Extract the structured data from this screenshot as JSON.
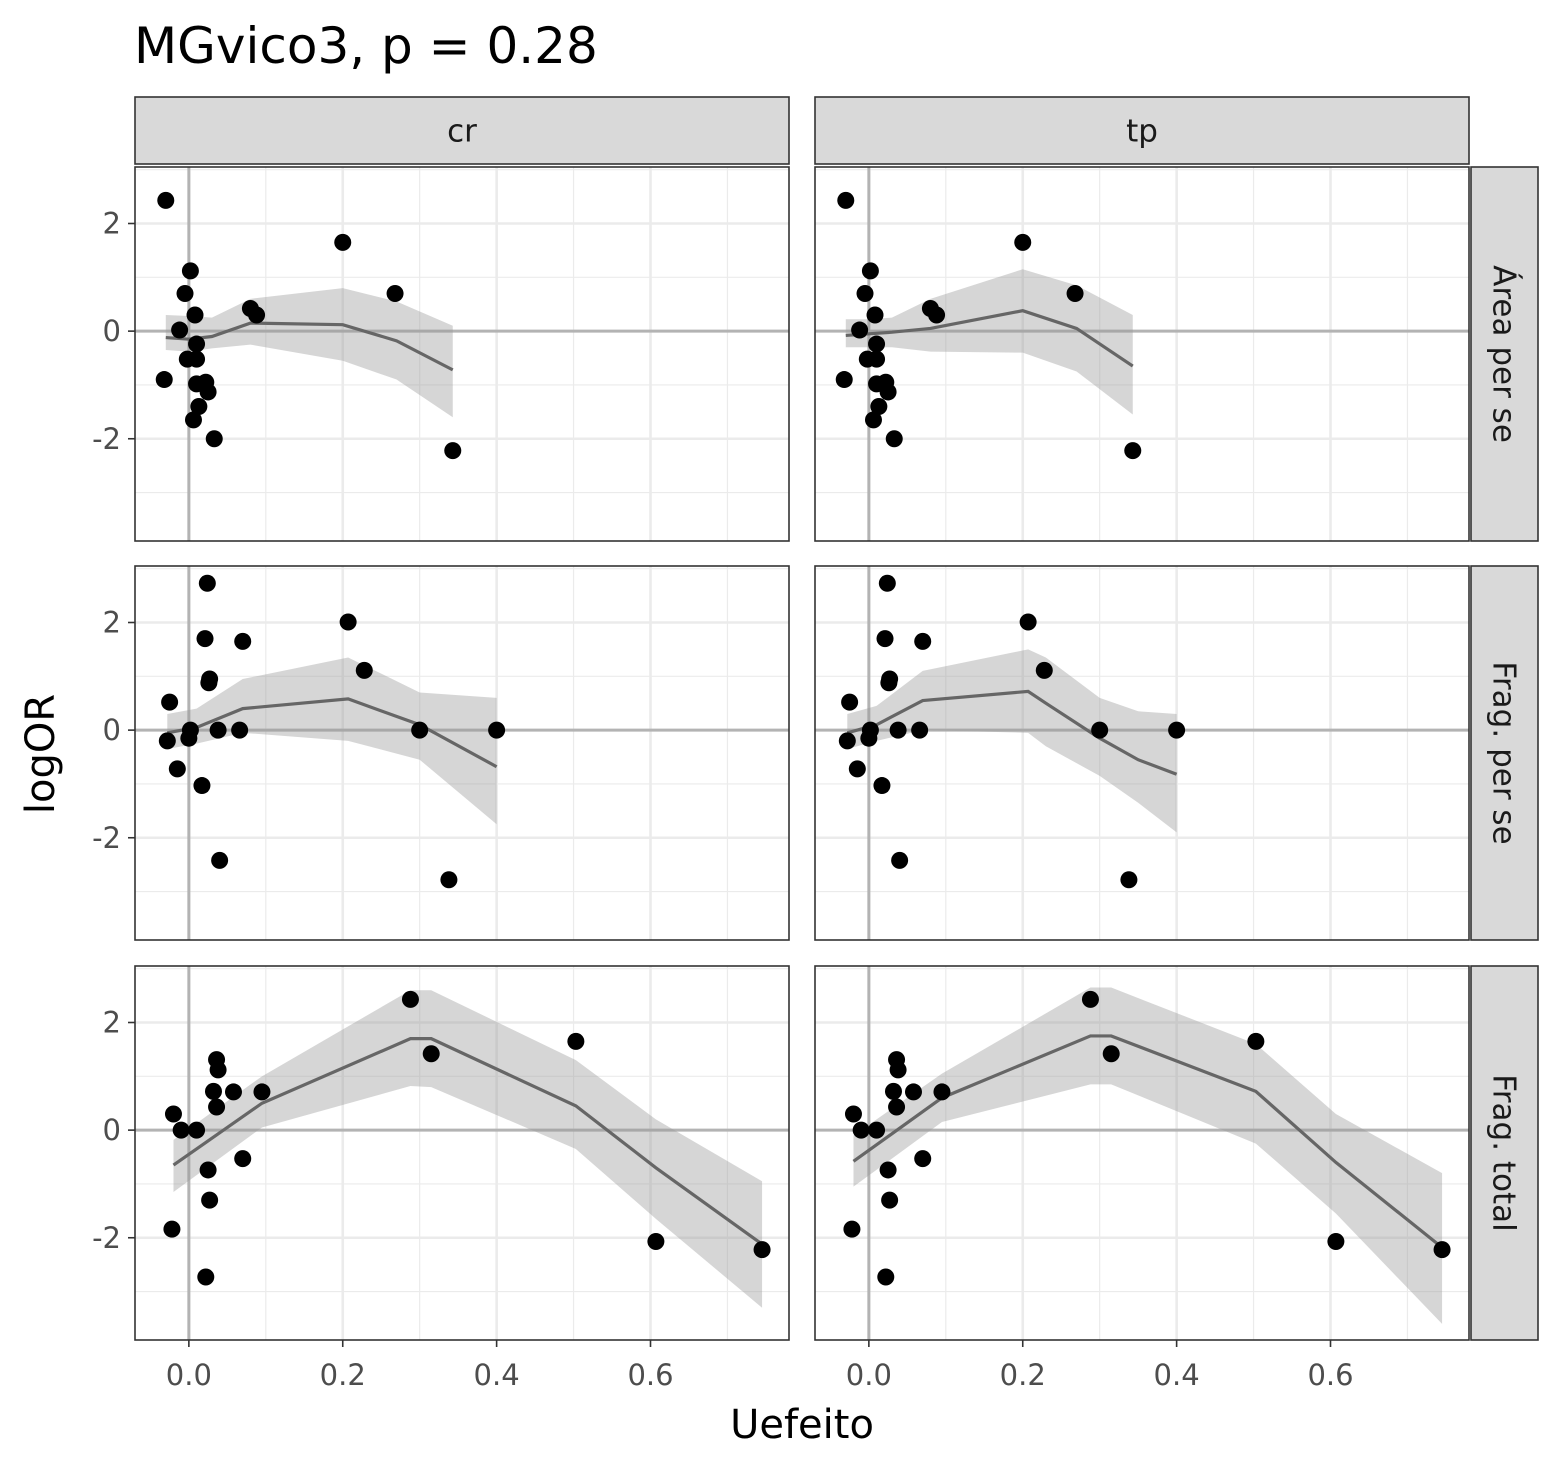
{
  "chart_data": {
    "type": "scatter",
    "title": "MGvico3, p = 0.28",
    "xlabel": "Uefeito",
    "ylabel": "logOR",
    "xlim": [
      -0.07,
      0.78
    ],
    "ylim": [
      -3.9,
      3.05
    ],
    "x_ticks": [
      0.0,
      0.2,
      0.4,
      0.6
    ],
    "x_tick_labels": [
      "0.0",
      "0.2",
      "0.4",
      "0.6"
    ],
    "y_ticks": [
      2,
      0,
      -2
    ],
    "y_tick_labels": [
      "2",
      "0",
      "-2"
    ],
    "reference_lines": {
      "x": 0,
      "y": 0
    },
    "grid": true,
    "column_facets": [
      "cr",
      "tp"
    ],
    "row_facets": [
      "Área per se",
      "Frag. per se",
      "Frag. total"
    ],
    "rows": [
      {
        "points": [
          [
            -0.03,
            2.43
          ],
          [
            -0.032,
            -0.9
          ],
          [
            0.002,
            1.12
          ],
          [
            -0.005,
            0.7
          ],
          [
            0.008,
            0.3
          ],
          [
            -0.012,
            0.02
          ],
          [
            -0.002,
            -0.52
          ],
          [
            0.01,
            -0.52
          ],
          [
            0.01,
            -0.24
          ],
          [
            0.01,
            -0.98
          ],
          [
            0.022,
            -0.95
          ],
          [
            0.025,
            -1.13
          ],
          [
            0.013,
            -1.4
          ],
          [
            0.006,
            -1.65
          ],
          [
            0.033,
            -2.0
          ],
          [
            0.2,
            1.65
          ],
          [
            0.08,
            0.42
          ],
          [
            0.088,
            0.3
          ],
          [
            0.268,
            0.7
          ],
          [
            0.343,
            -2.22
          ]
        ],
        "panels": [
          {
            "facet": "cr",
            "fit_x": [
              -0.03,
              0.0,
              0.03,
              0.08,
              0.2,
              0.27,
              0.343
            ],
            "fit_y": [
              -0.12,
              -0.15,
              -0.1,
              0.15,
              0.12,
              -0.18,
              -0.72
            ],
            "fit_lower": [
              -0.35,
              -0.38,
              -0.32,
              -0.25,
              -0.55,
              -0.9,
              -1.6
            ],
            "fit_upper": [
              0.3,
              0.28,
              0.25,
              0.6,
              0.8,
              0.55,
              0.1
            ]
          },
          {
            "facet": "tp",
            "fit_x": [
              -0.03,
              0.0,
              0.03,
              0.08,
              0.2,
              0.27,
              0.343
            ],
            "fit_y": [
              -0.08,
              -0.05,
              -0.02,
              0.05,
              0.38,
              0.05,
              -0.65
            ],
            "fit_lower": [
              -0.3,
              -0.3,
              -0.3,
              -0.38,
              -0.4,
              -0.75,
              -1.55
            ],
            "fit_upper": [
              0.22,
              0.22,
              0.25,
              0.6,
              1.15,
              0.85,
              0.3
            ]
          }
        ]
      },
      {
        "points": [
          [
            0.024,
            2.73
          ],
          [
            0.021,
            1.7
          ],
          [
            0.07,
            1.65
          ],
          [
            0.027,
            0.95
          ],
          [
            0.026,
            0.88
          ],
          [
            -0.025,
            0.52
          ],
          [
            0.207,
            2.01
          ],
          [
            0.228,
            1.11
          ],
          [
            -0.028,
            -0.2
          ],
          [
            -0.015,
            -0.72
          ],
          [
            0.0,
            -0.15
          ],
          [
            0.002,
            0.0
          ],
          [
            0.038,
            0.0
          ],
          [
            0.066,
            0.0
          ],
          [
            0.3,
            0.0
          ],
          [
            0.4,
            0.0
          ],
          [
            0.017,
            -1.03
          ],
          [
            0.04,
            -2.42
          ],
          [
            0.338,
            -2.78
          ]
        ],
        "panels": [
          {
            "facet": "cr",
            "fit_x": [
              -0.028,
              0.01,
              0.07,
              0.207,
              0.3,
              0.4
            ],
            "fit_y": [
              -0.05,
              0.05,
              0.4,
              0.58,
              0.1,
              -0.68
            ],
            "fit_lower": [
              -0.35,
              -0.25,
              -0.05,
              -0.2,
              -0.55,
              -1.75
            ],
            "fit_upper": [
              0.3,
              0.4,
              0.95,
              1.35,
              0.7,
              0.6
            ]
          },
          {
            "facet": "tp",
            "fit_x": [
              -0.028,
              0.01,
              0.07,
              0.207,
              0.23,
              0.3,
              0.35,
              0.4
            ],
            "fit_y": [
              -0.05,
              0.1,
              0.55,
              0.72,
              0.5,
              -0.15,
              -0.55,
              -0.82
            ],
            "fit_lower": [
              -0.35,
              -0.2,
              0.0,
              -0.05,
              -0.3,
              -0.85,
              -1.35,
              -1.9
            ],
            "fit_upper": [
              0.3,
              0.45,
              1.1,
              1.5,
              1.35,
              0.6,
              0.35,
              0.3
            ]
          }
        ]
      },
      {
        "points": [
          [
            0.288,
            2.43
          ],
          [
            0.315,
            1.42
          ],
          [
            0.503,
            1.65
          ],
          [
            0.036,
            1.31
          ],
          [
            0.038,
            1.12
          ],
          [
            0.032,
            0.72
          ],
          [
            0.058,
            0.71
          ],
          [
            0.095,
            0.71
          ],
          [
            0.036,
            0.43
          ],
          [
            -0.02,
            0.3
          ],
          [
            -0.01,
            0.0
          ],
          [
            0.01,
            0.0
          ],
          [
            0.07,
            -0.53
          ],
          [
            0.025,
            -0.74
          ],
          [
            0.027,
            -1.3
          ],
          [
            -0.022,
            -1.84
          ],
          [
            0.022,
            -2.73
          ],
          [
            0.607,
            -2.07
          ],
          [
            0.745,
            -2.22
          ]
        ],
        "panels": [
          {
            "facet": "cr",
            "fit_x": [
              -0.02,
              0.095,
              0.288,
              0.315,
              0.503,
              0.607,
              0.745
            ],
            "fit_y": [
              -0.65,
              0.5,
              1.7,
              1.7,
              0.45,
              -0.7,
              -2.12
            ],
            "fit_lower": [
              -1.15,
              0.05,
              0.82,
              0.8,
              -0.35,
              -1.65,
              -3.3
            ],
            "fit_upper": [
              -0.18,
              1.0,
              2.6,
              2.6,
              1.3,
              0.2,
              -0.95
            ]
          },
          {
            "facet": "tp",
            "fit_x": [
              -0.02,
              0.095,
              0.288,
              0.315,
              0.503,
              0.607,
              0.745
            ],
            "fit_y": [
              -0.58,
              0.6,
              1.75,
              1.75,
              0.72,
              -0.6,
              -2.18
            ],
            "fit_lower": [
              -1.05,
              0.15,
              0.85,
              0.85,
              -0.25,
              -1.55,
              -3.6
            ],
            "fit_upper": [
              -0.1,
              1.05,
              2.65,
              2.65,
              1.6,
              0.3,
              -0.8
            ]
          }
        ]
      }
    ]
  }
}
